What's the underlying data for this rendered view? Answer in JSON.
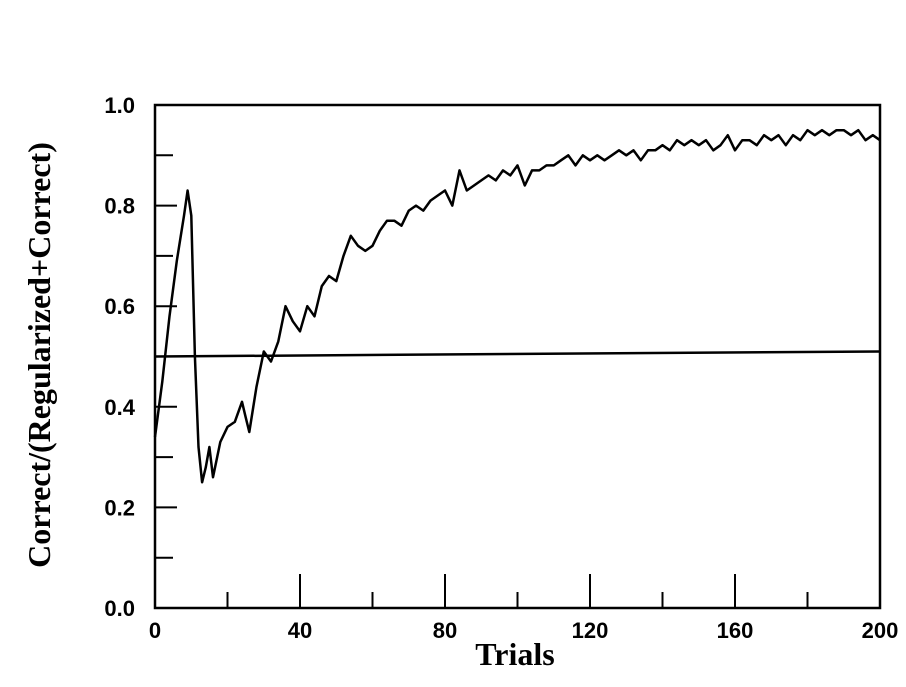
{
  "chart_data": {
    "type": "line",
    "x_label": "Trials",
    "y_label": "Correct/(Regularized+Correct)",
    "xlim": [
      0,
      200
    ],
    "ylim": [
      0,
      1
    ],
    "xticks": [
      0,
      40,
      80,
      120,
      160,
      200
    ],
    "xminor": [
      20,
      60,
      100,
      140,
      180
    ],
    "yticks": [
      {
        "value": 0,
        "label": "0.0"
      },
      0.2,
      0.4,
      0.6,
      0.8,
      {
        "value": 1,
        "label": "1.0"
      }
    ],
    "yminor": [
      0.1,
      0.3,
      0.5,
      0.7,
      0.9
    ],
    "reference_line": {
      "x": [
        0,
        200
      ],
      "y": [
        0.5,
        0.51
      ]
    },
    "x": [
      0,
      2,
      4,
      6,
      8,
      9,
      10,
      11,
      12,
      13,
      14,
      15,
      16,
      18,
      20,
      22,
      24,
      25,
      26,
      28,
      30,
      32,
      34,
      36,
      38,
      40,
      42,
      44,
      46,
      48,
      50,
      52,
      54,
      56,
      58,
      60,
      62,
      64,
      66,
      68,
      70,
      72,
      74,
      76,
      78,
      80,
      82,
      84,
      86,
      88,
      90,
      92,
      94,
      96,
      98,
      100,
      102,
      104,
      106,
      108,
      110,
      112,
      114,
      116,
      118,
      120,
      122,
      124,
      126,
      128,
      130,
      132,
      134,
      136,
      138,
      140,
      142,
      144,
      146,
      148,
      150,
      152,
      154,
      156,
      158,
      160,
      162,
      164,
      166,
      168,
      170,
      172,
      174,
      176,
      178,
      180,
      182,
      184,
      186,
      188,
      190,
      192,
      194,
      196,
      198,
      200
    ],
    "series": [
      {
        "color": "#000000",
        "values": [
          0.34,
          0.45,
          0.58,
          0.69,
          0.78,
          0.83,
          0.78,
          0.5,
          0.32,
          0.25,
          0.28,
          0.32,
          0.26,
          0.33,
          0.36,
          0.37,
          0.41,
          0.38,
          0.35,
          0.44,
          0.51,
          0.49,
          0.53,
          0.6,
          0.57,
          0.55,
          0.6,
          0.58,
          0.64,
          0.66,
          0.65,
          0.7,
          0.74,
          0.72,
          0.71,
          0.72,
          0.75,
          0.77,
          0.77,
          0.76,
          0.79,
          0.8,
          0.79,
          0.81,
          0.82,
          0.83,
          0.8,
          0.87,
          0.83,
          0.84,
          0.85,
          0.86,
          0.85,
          0.87,
          0.86,
          0.88,
          0.84,
          0.87,
          0.87,
          0.88,
          0.88,
          0.89,
          0.9,
          0.88,
          0.9,
          0.89,
          0.9,
          0.89,
          0.9,
          0.91,
          0.9,
          0.91,
          0.89,
          0.91,
          0.91,
          0.92,
          0.91,
          0.93,
          0.92,
          0.93,
          0.92,
          0.93,
          0.91,
          0.92,
          0.94,
          0.91,
          0.93,
          0.93,
          0.92,
          0.94,
          0.93,
          0.94,
          0.92,
          0.94,
          0.93,
          0.95,
          0.94,
          0.95,
          0.94,
          0.95,
          0.95,
          0.94,
          0.95,
          0.93,
          0.94,
          0.93
        ]
      }
    ]
  }
}
